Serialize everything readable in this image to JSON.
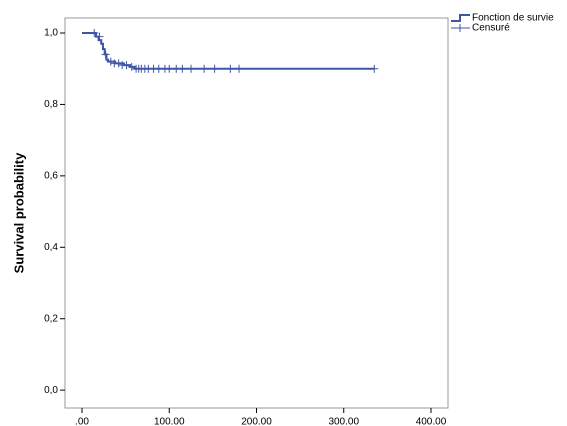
{
  "chart_data": {
    "type": "survival",
    "ylabel": "Survival probability",
    "color": "#3e55a6",
    "xlim": [
      -19.5,
      419.5
    ],
    "ylim": [
      -0.05,
      1.042
    ],
    "xticks": [
      {
        "value": 0,
        "label": ".00"
      },
      {
        "value": 100,
        "label": "100.00"
      },
      {
        "value": 200,
        "label": "200.00"
      },
      {
        "value": 300,
        "label": "300.00"
      },
      {
        "value": 400,
        "label": "400.00"
      }
    ],
    "yticks": [
      {
        "value": 0,
        "label": "0,0"
      },
      {
        "value": 0.2,
        "label": "0,2"
      },
      {
        "value": 0.4,
        "label": "0,4"
      },
      {
        "value": 0.6,
        "label": "0,6"
      },
      {
        "value": 0.8,
        "label": "0,8"
      },
      {
        "value": 1,
        "label": "1,0"
      }
    ],
    "series": [
      {
        "name": "Fonction de survie",
        "kind": "step",
        "x": [
          0,
          16,
          19,
          22,
          24,
          26,
          28,
          30,
          38,
          48,
          55,
          60,
          335
        ],
        "values": [
          1,
          0.99,
          0.98,
          0.97,
          0.955,
          0.94,
          0.925,
          0.92,
          0.915,
          0.91,
          0.905,
          0.9,
          0.9
        ]
      },
      {
        "name": "Censuré",
        "kind": "censor",
        "x": [
          14,
          20,
          27,
          33,
          37,
          42,
          46,
          51,
          57,
          62,
          65,
          68,
          72,
          76,
          82,
          88,
          95,
          100,
          108,
          115,
          125,
          140,
          152,
          170,
          180,
          335
        ],
        "values": [
          1,
          0.99,
          0.94,
          0.92,
          0.915,
          0.915,
          0.91,
          0.91,
          0.905,
          0.9,
          0.9,
          0.9,
          0.9,
          0.9,
          0.9,
          0.9,
          0.9,
          0.9,
          0.9,
          0.9,
          0.9,
          0.9,
          0.9,
          0.9,
          0.9,
          0.9
        ]
      }
    ]
  }
}
